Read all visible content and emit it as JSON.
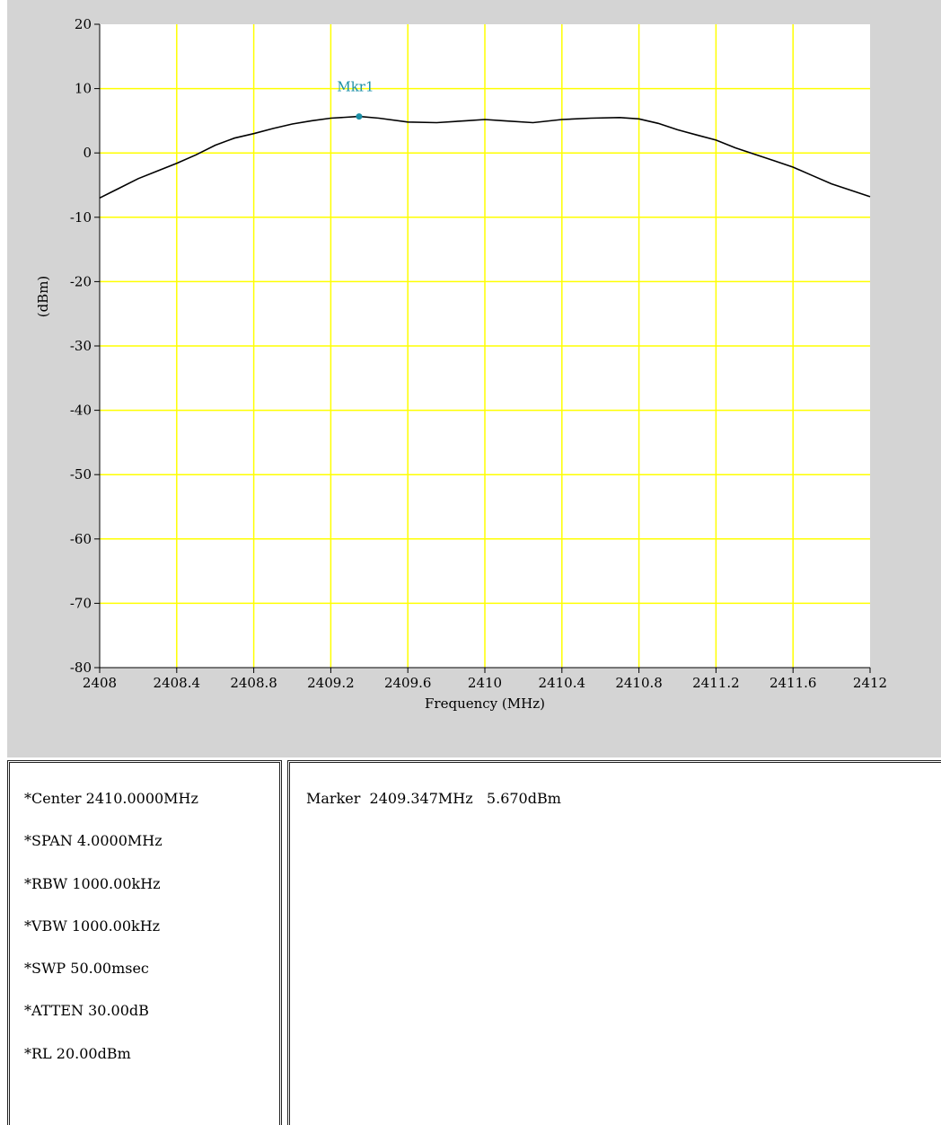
{
  "chart_data": {
    "type": "line",
    "xlabel": "Frequency (MHz)",
    "ylabel": "(dBm)",
    "xlim": [
      2408,
      2412
    ],
    "ylim": [
      -80,
      20
    ],
    "x_ticks": [
      "2408",
      "2408.4",
      "2408.8",
      "2409.2",
      "2409.6",
      "2410",
      "2410.4",
      "2410.8",
      "2411.2",
      "2411.6",
      "2412"
    ],
    "y_ticks": [
      "20",
      "10",
      "0",
      "-10",
      "-20",
      "-30",
      "-40",
      "-50",
      "-60",
      "-70",
      "-80"
    ],
    "grid": true,
    "series": [
      {
        "x": [
          2408.0,
          2408.1,
          2408.2,
          2408.3,
          2408.4,
          2408.5,
          2408.6,
          2408.7,
          2408.8,
          2408.9,
          2409.0,
          2409.1,
          2409.2,
          2409.347,
          2409.45,
          2409.6,
          2409.75,
          2409.9,
          2410.0,
          2410.1,
          2410.25,
          2410.4,
          2410.55,
          2410.7,
          2410.8,
          2410.9,
          2411.0,
          2411.1,
          2411.2,
          2411.3,
          2411.4,
          2411.5,
          2411.6,
          2411.7,
          2411.8,
          2411.9,
          2412.0
        ],
        "y": [
          -7.0,
          -5.5,
          -4.0,
          -2.8,
          -1.6,
          -0.3,
          1.2,
          2.3,
          3.0,
          3.8,
          4.5,
          5.0,
          5.4,
          5.67,
          5.4,
          4.8,
          4.7,
          5.0,
          5.2,
          5.0,
          4.7,
          5.2,
          5.4,
          5.5,
          5.3,
          4.6,
          3.6,
          2.8,
          2.0,
          0.8,
          -0.2,
          -1.2,
          -2.2,
          -3.5,
          -4.8,
          -5.8,
          -6.8
        ]
      }
    ],
    "marker": {
      "label": "Mkr1",
      "x": 2409.347,
      "y": 5.67
    },
    "colors": {
      "grid": "#ffff00",
      "plot_bg": "#ffffff",
      "trace": "#000000",
      "marker": "#1a8fa6",
      "panel": "#d4d4d4"
    }
  },
  "settings": [
    "*Center  2410.0000MHz",
    "*SPAN  4.0000MHz",
    "*RBW  1000.00kHz",
    "*VBW  1000.00kHz",
    "*SWP  50.00msec",
    "*ATTEN  30.00dB",
    "*RL  20.00dBm"
  ],
  "marker_readout": "Marker  2409.347MHz   5.670dBm"
}
